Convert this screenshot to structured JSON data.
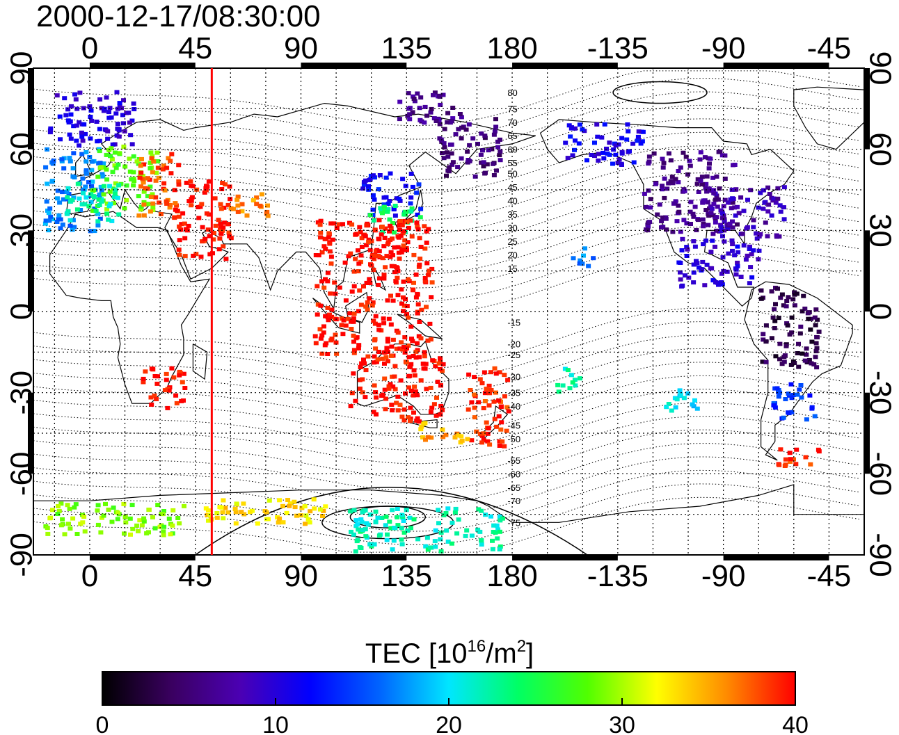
{
  "title": "2000-12-17/08:30:00",
  "map": {
    "projection": "equirectangular",
    "lon_range": [
      -24,
      330
    ],
    "lat_range": [
      -90,
      90
    ],
    "top_tick_labels": [
      "0",
      "45",
      "90",
      "135",
      "180",
      "-135",
      "-90",
      "-45"
    ],
    "top_tick_lons": [
      0,
      45,
      90,
      135,
      180,
      225,
      270,
      315
    ],
    "bottom_tick_labels": [
      "0",
      "45",
      "90",
      "135",
      "180",
      "-135",
      "-90",
      "-45"
    ],
    "bottom_tick_lons": [
      0,
      45,
      90,
      135,
      180,
      225,
      270,
      315
    ],
    "left_tick_labels": [
      "90",
      "60",
      "30",
      "0",
      "-30",
      "-60",
      "-90"
    ],
    "left_tick_lats": [
      90,
      60,
      30,
      0,
      -30,
      -60,
      -90
    ],
    "right_tick_labels": [
      "90",
      "60",
      "30",
      "0",
      "-30",
      "-60",
      "-90"
    ],
    "right_tick_lats": [
      90,
      60,
      30,
      0,
      -30,
      -60,
      -90
    ],
    "grid": "dotted",
    "meridian_marker_lon": 52,
    "marker_color": "#ff0000",
    "magnetic_latitude_labels": [
      "80",
      "75",
      "70",
      "65",
      "60",
      "55",
      "50",
      "45",
      "40",
      "35",
      "30",
      "25",
      "20",
      "15",
      "-15",
      "-20",
      "-25",
      "-30",
      "-35",
      "-40",
      "-45",
      "-50",
      "-55",
      "-60",
      "-65",
      "-70",
      "-75"
    ],
    "magnetic_label_lats": [
      81,
      75,
      70,
      65,
      60,
      55,
      51,
      46,
      41,
      36,
      31,
      26,
      21,
      16,
      -4,
      -12,
      -16,
      -24,
      -30,
      -35,
      -42,
      -47,
      -55,
      -60,
      -65,
      -70,
      -78
    ]
  },
  "colorbar": {
    "label_prefix": "TEC  [10",
    "label_sup1": "16",
    "label_mid": "/m",
    "label_sup2": "2",
    "label_suffix": "]",
    "tick_labels": [
      "0",
      "10",
      "20",
      "30",
      "40"
    ],
    "tick_values": [
      0,
      10,
      20,
      30,
      40
    ],
    "min": 0,
    "max": 40,
    "colormap": [
      "#000000",
      "#3a0060",
      "#4b00b4",
      "#0000ff",
      "#0064ff",
      "#00e6ff",
      "#00ff64",
      "#50ff00",
      "#ffff00",
      "#ff8c00",
      "#ff0000"
    ]
  },
  "tec_regions": [
    {
      "lon": [
        -18,
        18
      ],
      "lat": [
        62,
        82
      ],
      "value": 10
    },
    {
      "lon": [
        -20,
        5
      ],
      "lat": [
        30,
        62
      ],
      "value": 17
    },
    {
      "lon": [
        0,
        28
      ],
      "lat": [
        38,
        62
      ],
      "value": 28
    },
    {
      "lon": [
        20,
        38
      ],
      "lat": [
        36,
        60
      ],
      "value": 38
    },
    {
      "lon": [
        -12,
        12
      ],
      "lat": [
        34,
        48
      ],
      "value": 22
    },
    {
      "lon": [
        35,
        60
      ],
      "lat": [
        20,
        50
      ],
      "value": 40
    },
    {
      "lon": [
        115,
        140
      ],
      "lat": [
        36,
        52
      ],
      "value": 12
    },
    {
      "lon": [
        118,
        140
      ],
      "lat": [
        30,
        40
      ],
      "value": 24
    },
    {
      "lon": [
        112,
        135
      ],
      "lat": [
        20,
        32
      ],
      "value": 40
    },
    {
      "lon": [
        95,
        145
      ],
      "lat": [
        -15,
        35
      ],
      "value": 40
    },
    {
      "lon": [
        58,
        75
      ],
      "lat": [
        35,
        45
      ],
      "value": 36
    },
    {
      "lon": [
        20,
        40
      ],
      "lat": [
        -35,
        -20
      ],
      "value": 40
    },
    {
      "lon": [
        110,
        150
      ],
      "lat": [
        -40,
        -15
      ],
      "value": 40
    },
    {
      "lon": [
        160,
        178
      ],
      "lat": [
        -50,
        -20
      ],
      "value": 39
    },
    {
      "lon": [
        140,
        160
      ],
      "lat": [
        -48,
        -40
      ],
      "value": 35
    },
    {
      "lon": [
        130,
        160
      ],
      "lat": [
        70,
        82
      ],
      "value": 6
    },
    {
      "lon": [
        148,
        175
      ],
      "lat": [
        50,
        72
      ],
      "value": 5
    },
    {
      "lon": [
        200,
        235
      ],
      "lat": [
        55,
        70
      ],
      "value": 11
    },
    {
      "lon": [
        235,
        275
      ],
      "lat": [
        30,
        60
      ],
      "value": 6
    },
    {
      "lon": [
        260,
        295
      ],
      "lat": [
        28,
        48
      ],
      "value": 8
    },
    {
      "lon": [
        250,
        285
      ],
      "lat": [
        10,
        28
      ],
      "value": 10
    },
    {
      "lon": [
        285,
        310
      ],
      "lat": [
        -20,
        10
      ],
      "value": 3
    },
    {
      "lon": [
        290,
        308
      ],
      "lat": [
        -40,
        -25
      ],
      "value": 14
    },
    {
      "lon": [
        292,
        310
      ],
      "lat": [
        -58,
        -50
      ],
      "value": 39
    },
    {
      "lon": [
        -20,
        40
      ],
      "lat": [
        -82,
        -70
      ],
      "value": 29
    },
    {
      "lon": [
        48,
        100
      ],
      "lat": [
        -78,
        -68
      ],
      "value": 33
    },
    {
      "lon": [
        110,
        175
      ],
      "lat": [
        -88,
        -72
      ],
      "value": 22
    },
    {
      "lon": [
        198,
        208
      ],
      "lat": [
        -30,
        -20
      ],
      "value": 22
    },
    {
      "lon": [
        240,
        258
      ],
      "lat": [
        -36,
        -28
      ],
      "value": 20
    },
    {
      "lon": [
        205,
        214
      ],
      "lat": [
        17,
        25
      ],
      "value": 17
    }
  ]
}
